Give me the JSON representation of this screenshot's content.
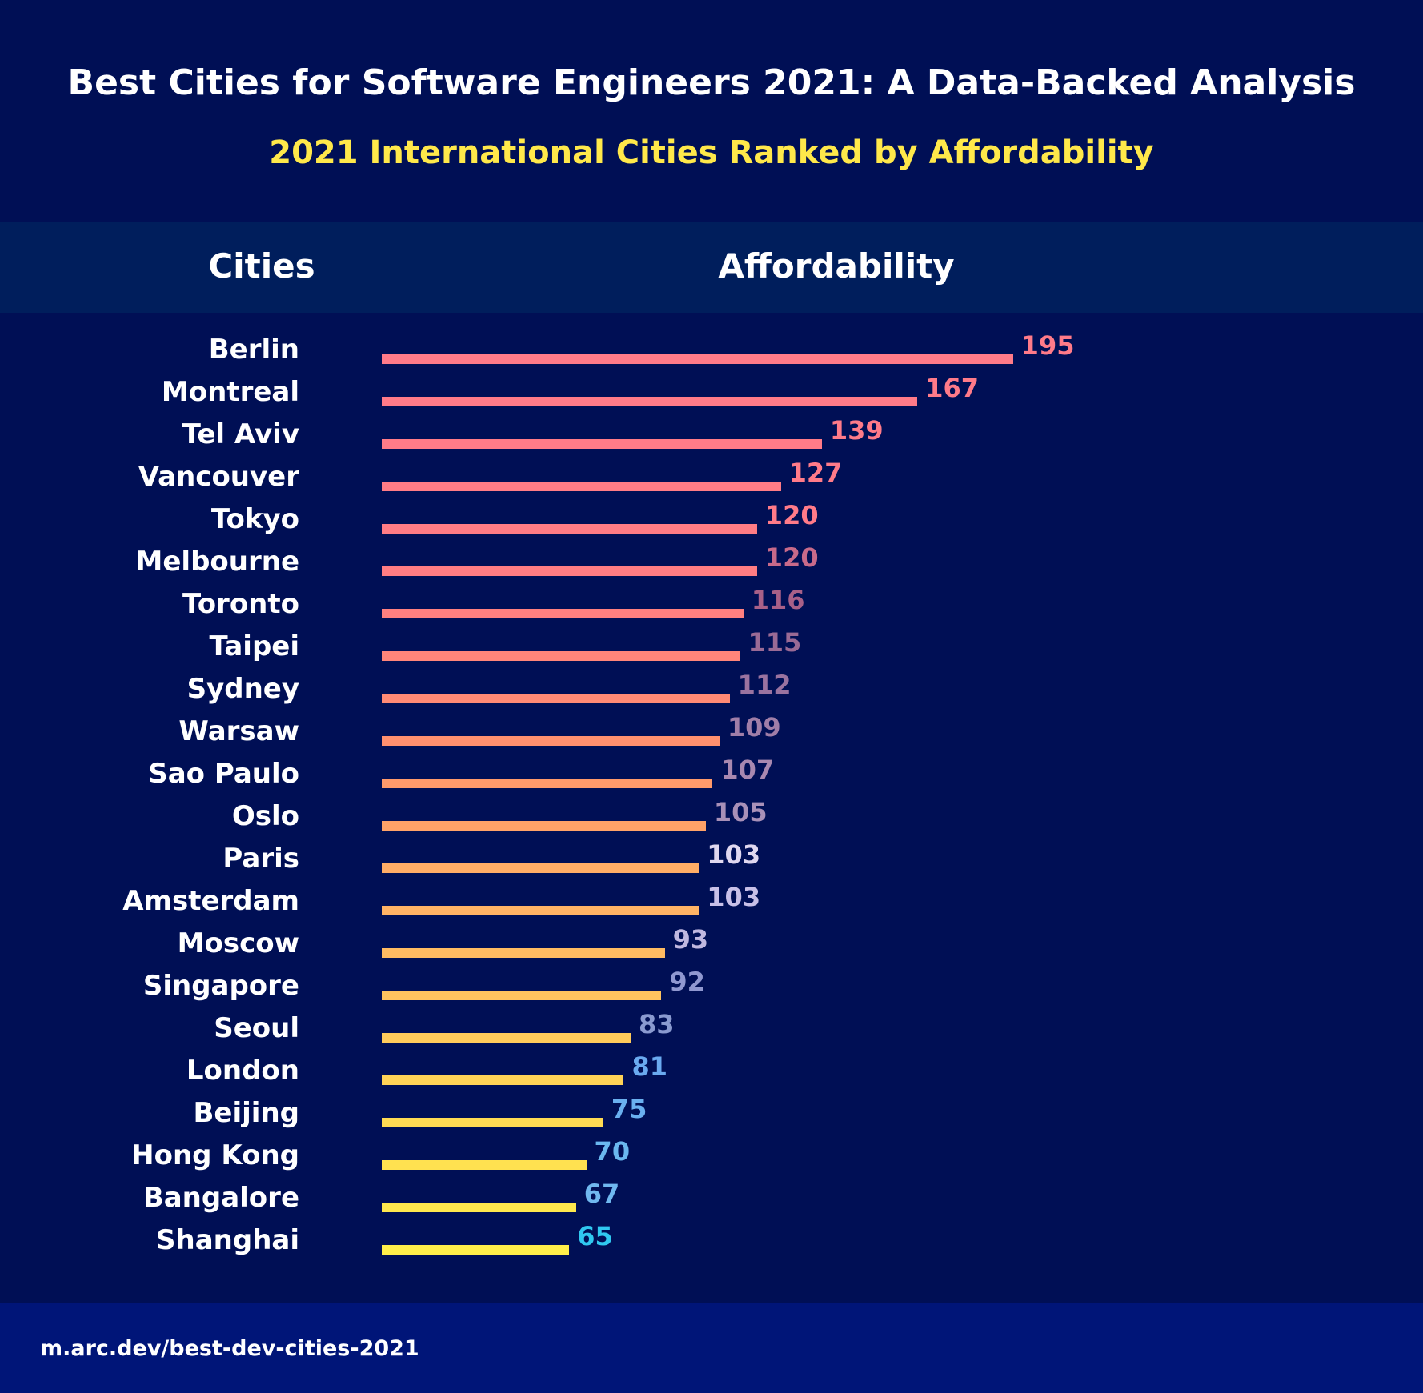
{
  "title": "Best Cities for Software Engineers 2021: A Data-Backed Analysis",
  "subtitle": "2021 International Cities Ranked by Affordability",
  "header": {
    "col1": "Cities",
    "col2": "Affordability"
  },
  "footer": {
    "url": "m.arc.dev/best-dev-cities-2021"
  },
  "chart_data": {
    "type": "bar",
    "orientation": "horizontal",
    "title": "2021 International Cities Ranked by Affordability",
    "xlabel": "Affordability",
    "ylabel": "Cities",
    "grid": false,
    "categories": [
      "Berlin",
      "Montreal",
      "Tel Aviv",
      "Vancouver",
      "Tokyo",
      "Melbourne",
      "Toronto",
      "Taipei",
      "Sydney",
      "Warsaw",
      "Sao Paulo",
      "Oslo",
      "Paris",
      "Amsterdam",
      "Moscow",
      "Singapore",
      "Seoul",
      "London",
      "Beijing",
      "Hong Kong",
      "Bangalore",
      "Shanghai"
    ],
    "values": [
      195,
      167,
      139,
      127,
      120,
      120,
      116,
      115,
      112,
      109,
      107,
      105,
      103,
      103,
      93,
      92,
      83,
      81,
      75,
      70,
      67,
      65
    ],
    "bar_colors": [
      "#ff7b89",
      "#ff7b89",
      "#ff7b88",
      "#ff7c86",
      "#ff7c85",
      "#ff7d83",
      "#ff8080",
      "#ff857a",
      "#ff8a75",
      "#ff906f",
      "#ff9a6b",
      "#ffa268",
      "#ffad66",
      "#ffb365",
      "#ffbb62",
      "#ffc35f",
      "#ffcb5b",
      "#ffd357",
      "#ffdb53",
      "#ffe150",
      "#ffe84d",
      "#ffee4a"
    ],
    "label_colors": [
      "#ff7b89",
      "#ff7b89",
      "#ff7b89",
      "#ff7b89",
      "#ff7b89",
      "#c86a8a",
      "#a86088",
      "#9a6a95",
      "#9a73a0",
      "#a07ea8",
      "#a888b0",
      "#a890b8",
      "#e0d8f0",
      "#c8c0e8",
      "#c0b8e0",
      "#9098d0",
      "#8a9ad0",
      "#6aaaf0",
      "#6ab0f0",
      "#6ab8f0",
      "#70b8f0",
      "#30c8f0"
    ]
  }
}
